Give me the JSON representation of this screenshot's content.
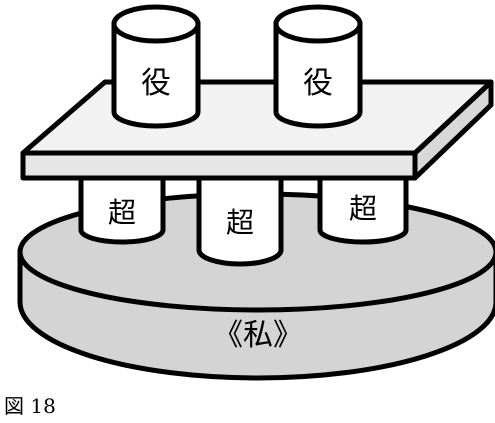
{
  "figure": {
    "caption": "図 18",
    "base_label": "《私》",
    "pillar_labels": [
      "超",
      "超",
      "超"
    ],
    "cup_labels": [
      "役",
      "役"
    ]
  },
  "colors": {
    "outline": "#000000",
    "base_fill": "#d4d4d4",
    "board_top": "#f2f2f2",
    "board_edge": "#d8d8d8",
    "cylinder_fill": "#ffffff"
  }
}
